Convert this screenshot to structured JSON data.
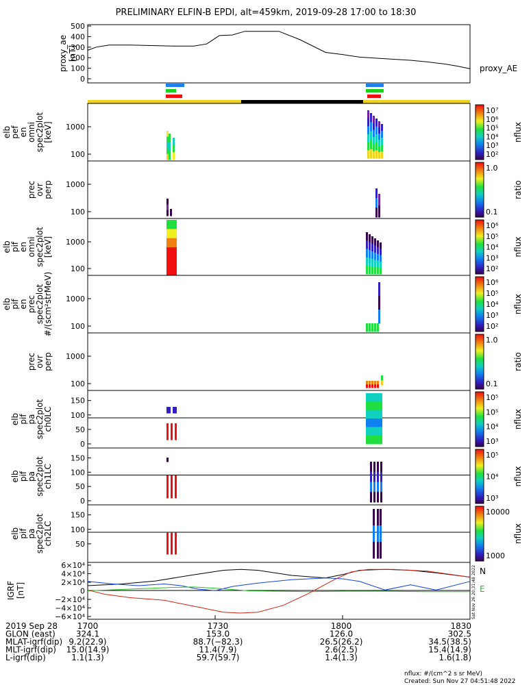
{
  "title": "PRELIMINARY ELFIN-B EPDI, alt=459km, 2019-09-28 17:00 to 18:30",
  "chart_data": [
    {
      "id": "proxy_ae",
      "type": "line",
      "ylabel": [
        "proxy_ae",
        "[nT]"
      ],
      "right_label": "proxy_AE",
      "yticks": [
        "0",
        "100",
        "200",
        "300",
        "400",
        "500"
      ],
      "ylim": [
        0,
        500
      ],
      "x_minutes": [
        0,
        2,
        5,
        10,
        20,
        25,
        28,
        31,
        34,
        37,
        45,
        50,
        56,
        60,
        64,
        70,
        76,
        80,
        84,
        87,
        90
      ],
      "values": [
        270,
        300,
        320,
        320,
        310,
        310,
        330,
        410,
        415,
        450,
        450,
        370,
        250,
        230,
        205,
        190,
        175,
        160,
        140,
        120,
        95
      ]
    },
    {
      "id": "elb_pef_en",
      "type": "heatmap",
      "ylabel": [
        "elb",
        "pef",
        "en",
        "omni",
        "spec2plot",
        "[keV]"
      ],
      "yticks": [
        "100",
        "1000"
      ],
      "colorbar": {
        "label": "nflux",
        "ticks": [
          "10²",
          "10³",
          "10⁴",
          "10⁵",
          "10⁶",
          "10⁷"
        ]
      }
    },
    {
      "id": "prec_ovr_perp_e",
      "type": "heatmap",
      "ylabel": [
        "prec",
        "ovr",
        "perp"
      ],
      "yticks": [
        "100",
        "1000"
      ],
      "colorbar": {
        "label": "ratio",
        "ticks": [
          "0.1",
          "1.0"
        ]
      }
    },
    {
      "id": "elb_pif_en",
      "type": "heatmap",
      "ylabel": [
        "elb",
        "pif",
        "en",
        "omni",
        "spec2plot",
        "[keV]"
      ],
      "yticks": [
        "100",
        "1000"
      ],
      "colorbar": {
        "label": "nflux",
        "ticks": [
          "10²",
          "10³",
          "10⁴",
          "10⁵",
          "10⁶"
        ]
      }
    },
    {
      "id": "elb_pif_en_prec",
      "type": "heatmap",
      "ylabel": [
        "elb",
        "pif",
        "en",
        "prec",
        "spec2plot",
        "#/(scm²strMeV)"
      ],
      "yticks": [
        "100",
        "1000"
      ],
      "colorbar": {
        "label": "nflux",
        "ticks": [
          "10²",
          "10³",
          "10⁴",
          "10⁵",
          "10⁶"
        ]
      }
    },
    {
      "id": "prec_ovr_perp_i",
      "type": "heatmap",
      "ylabel": [
        "prec",
        "ovr",
        "perp"
      ],
      "yticks": [
        "100",
        "1000"
      ],
      "colorbar": {
        "label": "ratio",
        "ticks": [
          "0.1",
          "1.0"
        ]
      }
    },
    {
      "id": "elb_pif_pa_ch0",
      "type": "heatmap",
      "ylabel": [
        "elb",
        "pif",
        "pa",
        "spec2plot",
        "ch0LC"
      ],
      "yticks": [
        "0",
        "50",
        "100",
        "150"
      ],
      "colorbar": {
        "label": "nflux",
        "ticks": [
          "10³",
          "10⁴",
          "10⁵",
          "10⁵"
        ]
      }
    },
    {
      "id": "elb_pif_pa_ch1",
      "type": "heatmap",
      "ylabel": [
        "elb",
        "pif",
        "pa",
        "spec2plot",
        "ch1LC"
      ],
      "yticks": [
        "0",
        "50",
        "100",
        "150"
      ],
      "colorbar": {
        "label": "nflux",
        "ticks": [
          "10³",
          "10⁴",
          "10⁵"
        ]
      }
    },
    {
      "id": "elb_pif_pa_ch2",
      "type": "heatmap",
      "ylabel": [
        "elb",
        "pif",
        "pa",
        "spec2plot",
        "ch2LC"
      ],
      "yticks": [
        "50",
        "100",
        "150"
      ],
      "colorbar": {
        "label": "nflux",
        "ticks": [
          "1000",
          "10000"
        ]
      }
    },
    {
      "id": "igrf",
      "type": "line",
      "ylabel": [
        "IGRF",
        "[nT]"
      ],
      "yticks": [
        "−6×10⁴",
        "−4×10⁴",
        "−2×10⁴",
        "0",
        "2×10⁴",
        "4×10⁴",
        "6×10⁴"
      ],
      "ylim": [
        -60000,
        60000
      ],
      "legend": [
        "N",
        "E"
      ],
      "side_note": "Sat Nov 26 20:31:48 2022",
      "series": [
        {
          "name": "N",
          "color": "#000000",
          "x": [
            0,
            8,
            16,
            24,
            32,
            36,
            40,
            48,
            56,
            60,
            64,
            70,
            76,
            82,
            90
          ],
          "values": [
            12000,
            16000,
            23000,
            36000,
            48000,
            50000,
            48000,
            36000,
            30000,
            38000,
            48000,
            50000,
            48000,
            42000,
            32000
          ]
        },
        {
          "name": "",
          "color": "#1040e0",
          "x": [
            0,
            6,
            12,
            18,
            22,
            26,
            30,
            34,
            40,
            48,
            56,
            60,
            64,
            70,
            76,
            82,
            90
          ],
          "values": [
            22000,
            16000,
            12000,
            16000,
            12000,
            4000,
            500,
            10000,
            18000,
            26000,
            30000,
            28000,
            22000,
            2000,
            14000,
            2000,
            22000
          ]
        },
        {
          "name": "E",
          "color": "#20c020",
          "x": [
            0,
            10,
            20,
            25,
            30,
            38,
            45,
            52,
            60,
            70,
            80,
            90
          ],
          "values": [
            0,
            4000,
            8000,
            9000,
            6000,
            0,
            -1000,
            -2000,
            -1000,
            -1000,
            -2000,
            -2000
          ]
        },
        {
          "name": "",
          "color": "#d02010",
          "x": [
            0,
            4,
            10,
            18,
            26,
            32,
            36,
            40,
            46,
            52,
            58,
            62,
            66,
            72,
            80,
            90
          ],
          "values": [
            2000,
            -8000,
            -16000,
            -22000,
            -38000,
            -50000,
            -52000,
            -50000,
            -34000,
            -6000,
            26000,
            44000,
            50000,
            50000,
            46000,
            32000
          ]
        }
      ]
    }
  ],
  "top_bars": {
    "colors": {
      "blue": "#2080f0",
      "green": "#20d020",
      "red": "#f01010",
      "yellow": "#f0d020",
      "black": "#000000"
    }
  },
  "xaxis": {
    "ticks": [
      "1700",
      "1730",
      "1800",
      "1830"
    ],
    "rows": [
      {
        "label": "2019 Sep 28",
        "values": [
          "1700",
          "1730",
          "1800",
          "1830"
        ]
      },
      {
        "label": "GLON (east)",
        "values": [
          "324.1",
          "153.0",
          "126.0",
          "302.5"
        ]
      },
      {
        "label": "MLAT-igrf(dip)",
        "values": [
          "9.2(22.9)",
          "88.7(−82.3)",
          "26.5(26.2)",
          "34.5(38.5)"
        ]
      },
      {
        "label": "MLT-igrf(dip)",
        "values": [
          "15.0(14.9)",
          "11.4(7.9)",
          "2.6(2.5)",
          "15.4(14.9)"
        ]
      },
      {
        "label": "L-igrf(dip)",
        "values": [
          "1.1(1.3)",
          "59.7(59.7)",
          "1.4(1.3)",
          "1.6(1.8)"
        ]
      }
    ]
  },
  "footer": {
    "units": "nflux: #/(cm^2 s sr MeV)",
    "created": "Created: Sun Nov 27 04:51:48 2022"
  }
}
